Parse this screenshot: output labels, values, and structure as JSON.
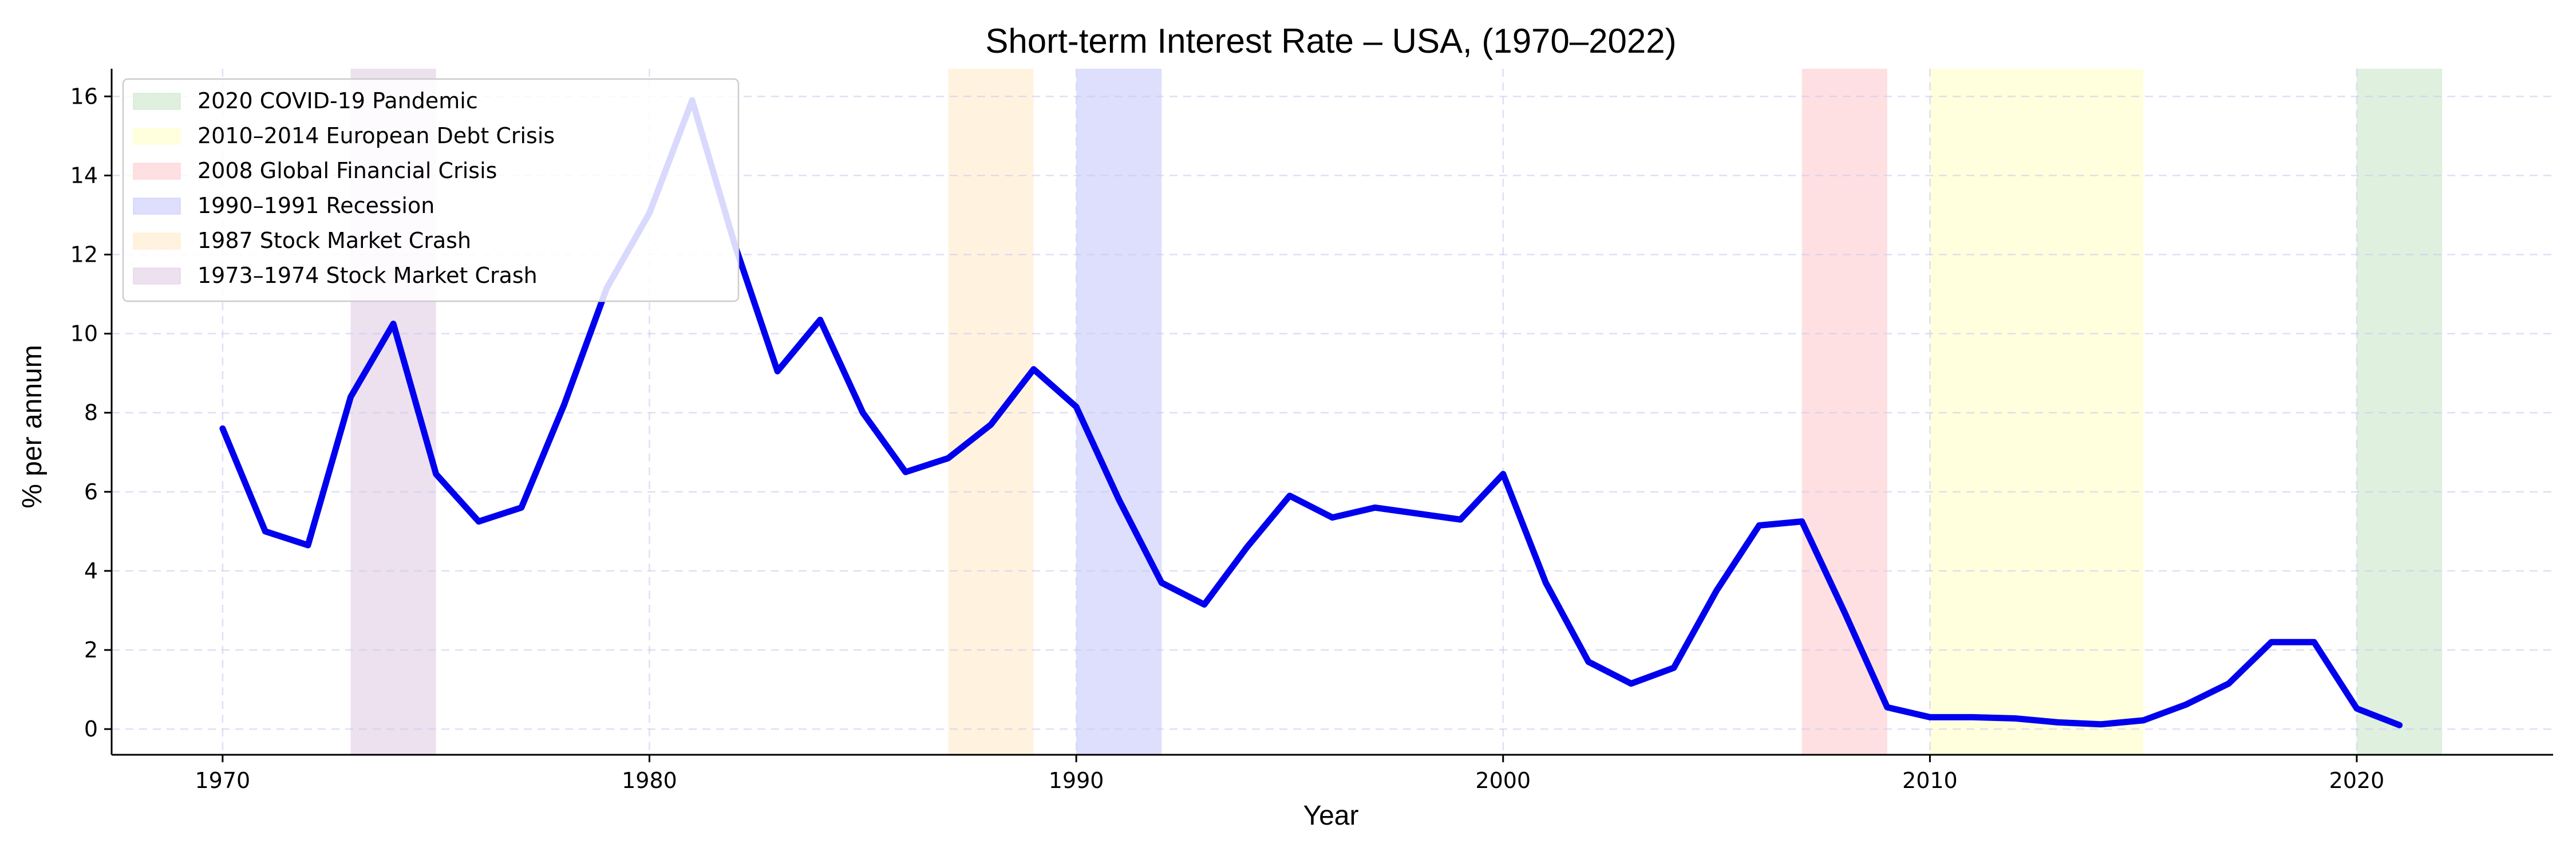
{
  "chart_data": {
    "type": "line",
    "title": "Short-term Interest Rate – USA, (1970–2022)",
    "xlabel": "Year",
    "ylabel": "% per annum",
    "xlim": [
      1967.4,
      2024.6
    ],
    "ylim": [
      -0.65,
      16.7
    ],
    "xticks": [
      1970,
      1980,
      1990,
      2000,
      2010,
      2020
    ],
    "yticks": [
      0,
      2,
      4,
      6,
      8,
      10,
      12,
      14,
      16
    ],
    "grid": true,
    "legend_position": "top-left",
    "series": [
      {
        "color": "#0000ee",
        "x": [
          1970,
          1971,
          1972,
          1973,
          1974,
          1975,
          1976,
          1977,
          1978,
          1979,
          1980,
          1981,
          1982,
          1983,
          1984,
          1985,
          1986,
          1987,
          1988,
          1989,
          1990,
          1991,
          1992,
          1993,
          1994,
          1995,
          1996,
          1997,
          1998,
          1999,
          2000,
          2001,
          2002,
          2003,
          2004,
          2005,
          2006,
          2007,
          2008,
          2009,
          2010,
          2011,
          2012,
          2013,
          2014,
          2015,
          2016,
          2017,
          2018,
          2019,
          2020,
          2021
        ],
        "y": [
          7.6,
          5.0,
          4.65,
          8.4,
          10.25,
          6.45,
          5.25,
          5.6,
          8.2,
          11.15,
          13.05,
          15.9,
          12.25,
          9.05,
          10.35,
          8.0,
          6.5,
          6.85,
          7.7,
          9.1,
          8.15,
          5.8,
          3.7,
          3.15,
          4.6,
          5.9,
          5.35,
          5.6,
          5.45,
          5.3,
          6.45,
          3.7,
          1.7,
          1.15,
          1.55,
          3.5,
          5.15,
          5.25,
          2.95,
          0.55,
          0.3,
          0.3,
          0.27,
          0.17,
          0.12,
          0.22,
          0.62,
          1.15,
          2.2,
          2.2,
          0.52,
          0.1
        ]
      }
    ],
    "shaded_periods": [
      {
        "label": "2020 COVID-19 Pandemic",
        "start": 2020,
        "end": 2022,
        "color": "#c9e6c9"
      },
      {
        "label": "2010–2014 European Debt Crisis",
        "start": 2010,
        "end": 2015,
        "color": "#ffffc6"
      },
      {
        "label": "2008 Global Financial Crisis",
        "start": 2007,
        "end": 2009,
        "color": "#ffcbcf"
      },
      {
        "label": "1990–1991 Recession",
        "start": 1990,
        "end": 1992,
        "color": "#c8c8fb"
      },
      {
        "label": "1987 Stock Market Crash",
        "start": 1987,
        "end": 1989,
        "color": "#ffebc9"
      },
      {
        "label": "1973–1974 Stock Market Crash",
        "start": 1973,
        "end": 1975,
        "color": "#e1cbe5"
      }
    ]
  }
}
